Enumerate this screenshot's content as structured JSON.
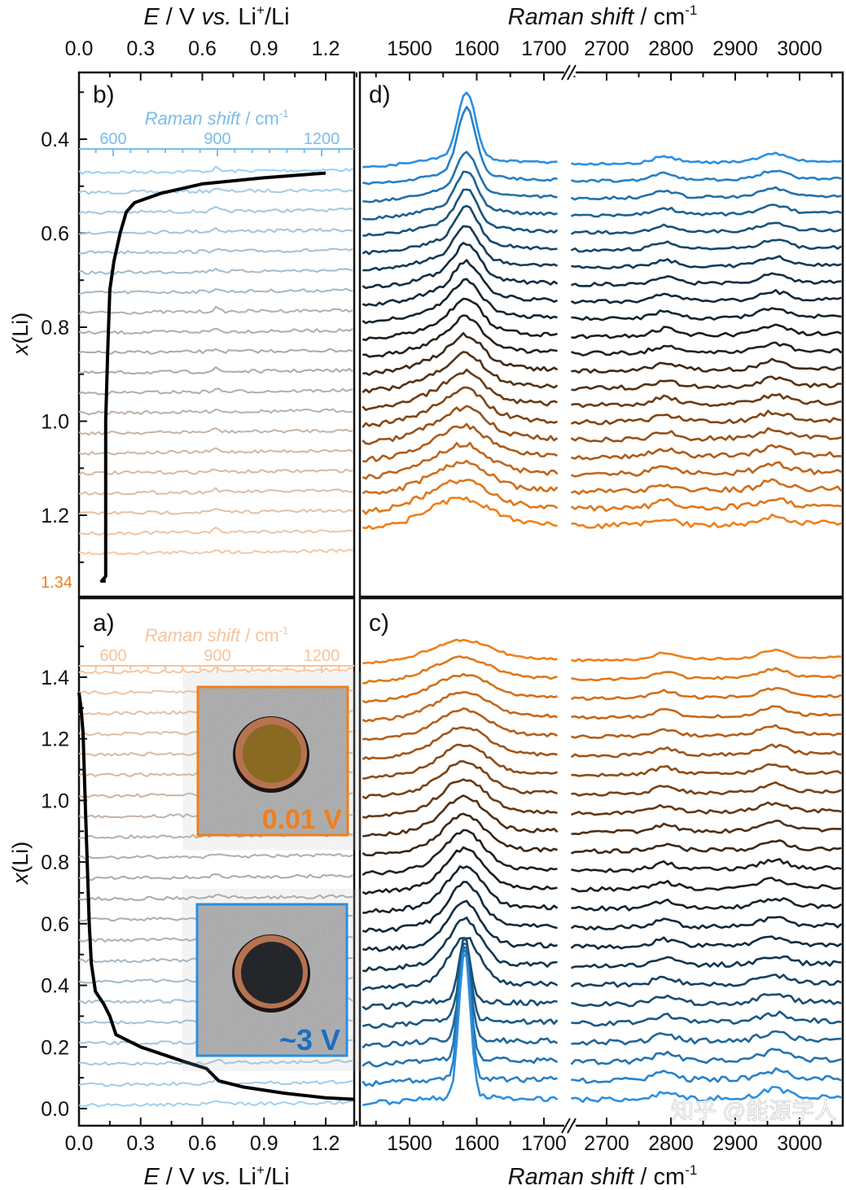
{
  "chart_data": {
    "type": "line",
    "top_xlabel": {
      "italic": "E",
      "mid": " / V ",
      "vs": "vs.",
      "li": " Li",
      "sup": "+",
      "end": "/Li"
    },
    "bottom_xlabel": {
      "italic": "E",
      "mid": " / V ",
      "vs": "vs.",
      "li": " Li",
      "sup": "+",
      "end": "/Li"
    },
    "raman_xlabel": {
      "text": "Raman shift",
      "unit": " / cm",
      "sup": "-1"
    },
    "ylabel": {
      "italic": "x",
      "rest": "(Li)"
    },
    "E_ticks": [
      "0.0",
      "0.3",
      "0.6",
      "0.9",
      "1.2"
    ],
    "E_tick_values": [
      0,
      0.3,
      0.6,
      0.9,
      1.2
    ],
    "E_range": [
      0,
      1.35
    ],
    "raman_ticks_left": [
      1500,
      1600,
      1700
    ],
    "raman_ticks_right": [
      2700,
      2800,
      2900,
      3000
    ],
    "raman_range_left": [
      1430,
      1730
    ],
    "raman_range_right": [
      2640,
      3070
    ],
    "inner_raman_ticks": [
      600,
      900,
      1200
    ],
    "inner_raman_range": [
      500,
      1250
    ],
    "panels": {
      "b": {
        "label": "b)",
        "inner_axis_label": "Raman shift / cm",
        "inner_axis_sup": "-1",
        "inner_axis_color": "#7cbcea",
        "y_ticks": [
          "0.4",
          "0.6",
          "0.8",
          "1.0",
          "1.2"
        ],
        "y_tick_values": [
          0.4,
          0.6,
          0.8,
          1.0,
          1.2
        ],
        "y_end_label": "1.34",
        "y_end_value": 1.34,
        "y_end_color": "#f07f1a",
        "y_range": [
          0.255,
          1.37
        ],
        "curve": [
          [
            0.13,
            1.34
          ],
          [
            0.11,
            1.34
          ],
          [
            0.13,
            1.33
          ],
          [
            0.13,
            1.2
          ],
          [
            0.13,
            1.0
          ],
          [
            0.14,
            0.85
          ],
          [
            0.15,
            0.72
          ],
          [
            0.17,
            0.66
          ],
          [
            0.2,
            0.6
          ],
          [
            0.23,
            0.555
          ],
          [
            0.27,
            0.535
          ],
          [
            0.4,
            0.515
          ],
          [
            0.6,
            0.495
          ],
          [
            0.9,
            0.482
          ],
          [
            1.2,
            0.472
          ]
        ],
        "spectra_count": 20,
        "colors": [
          "#9fd0f2",
          "#a8a8a8",
          "#f6c7a2"
        ]
      },
      "a": {
        "label": "a)",
        "inner_axis_label": "Raman shift / cm",
        "inner_axis_sup": "-1",
        "inner_axis_color": "#f6c39b",
        "y_ticks": [
          "0.0",
          "0.2",
          "0.4",
          "0.6",
          "0.8",
          "1.0",
          "1.2",
          "1.4"
        ],
        "y_tick_values": [
          0,
          0.2,
          0.4,
          0.6,
          0.8,
          1.0,
          1.2,
          1.4
        ],
        "y_range": [
          -0.058,
          1.6
        ],
        "curve": [
          [
            0.0,
            1.35
          ],
          [
            0.01,
            1.3
          ],
          [
            0.02,
            1.22
          ],
          [
            0.03,
            1.0
          ],
          [
            0.04,
            0.8
          ],
          [
            0.05,
            0.6
          ],
          [
            0.06,
            0.47
          ],
          [
            0.08,
            0.38
          ],
          [
            0.12,
            0.34
          ],
          [
            0.15,
            0.3
          ],
          [
            0.18,
            0.24
          ],
          [
            0.3,
            0.2
          ],
          [
            0.5,
            0.155
          ],
          [
            0.62,
            0.13
          ],
          [
            0.68,
            0.09
          ],
          [
            0.8,
            0.07
          ],
          [
            1.0,
            0.05
          ],
          [
            1.2,
            0.035
          ],
          [
            1.34,
            0.03
          ]
        ],
        "spectra_count": 22,
        "colors": [
          "#f6c7a2",
          "#a8a8a8",
          "#9fd0f2"
        ],
        "insets": [
          {
            "label": "0.01 V",
            "color": "#f07f1a",
            "center": "#8a6a22"
          },
          {
            "label": "~3 V",
            "color": "#2b8fe0",
            "center": "#24262a"
          }
        ]
      },
      "d": {
        "label": "d)",
        "spectra_count": 22,
        "peak_cm": 1585,
        "peak_amps": "decreasing top to bottom",
        "colors": [
          "#2b8fe0",
          "#1a5a86",
          "#0f2e45",
          "#1a1a1a",
          "#6b3a12",
          "#b8601a",
          "#f07f1a"
        ]
      },
      "c": {
        "label": "c)",
        "spectra_count": 24,
        "peak_cm": 1582,
        "peak_amps": "increasing top to bottom",
        "colors": [
          "#f07f1a",
          "#b8601a",
          "#6b3a12",
          "#1a1a1a",
          "#0f2e45",
          "#1a5a86",
          "#2b8fe0"
        ]
      }
    }
  },
  "watermark": "知乎 @能源学人"
}
